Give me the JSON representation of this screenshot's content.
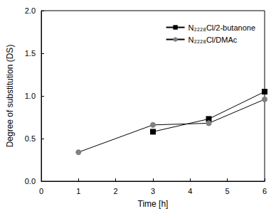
{
  "chart_data": {
    "type": "line",
    "x_label": "Time [h]",
    "y_label": "Degree of substitution (DS)",
    "xlim": [
      0,
      6
    ],
    "xticks": [
      0,
      1,
      2,
      3,
      4,
      5,
      6
    ],
    "ylim": [
      0,
      2
    ],
    "yticks": [
      {
        "value": 0,
        "label": "0.0"
      },
      0.5,
      {
        "value": 1,
        "label": "1.0"
      },
      1.5,
      {
        "value": 2,
        "label": "2.0"
      }
    ],
    "grid": false,
    "legend": "upper right",
    "series": [
      {
        "name": "N₂₂₂₈Cl/2-butanone",
        "color": "#000000",
        "marker": "square",
        "x": [
          3,
          4.5,
          6
        ],
        "values": [
          0.58,
          0.73,
          1.05
        ]
      },
      {
        "name": "N₂₂₂₈Cl/DMAc",
        "color": "#808080",
        "marker": "circle",
        "x": [
          1,
          3,
          4.5,
          6
        ],
        "values": [
          0.34,
          0.66,
          0.68,
          0.96
        ]
      }
    ]
  }
}
